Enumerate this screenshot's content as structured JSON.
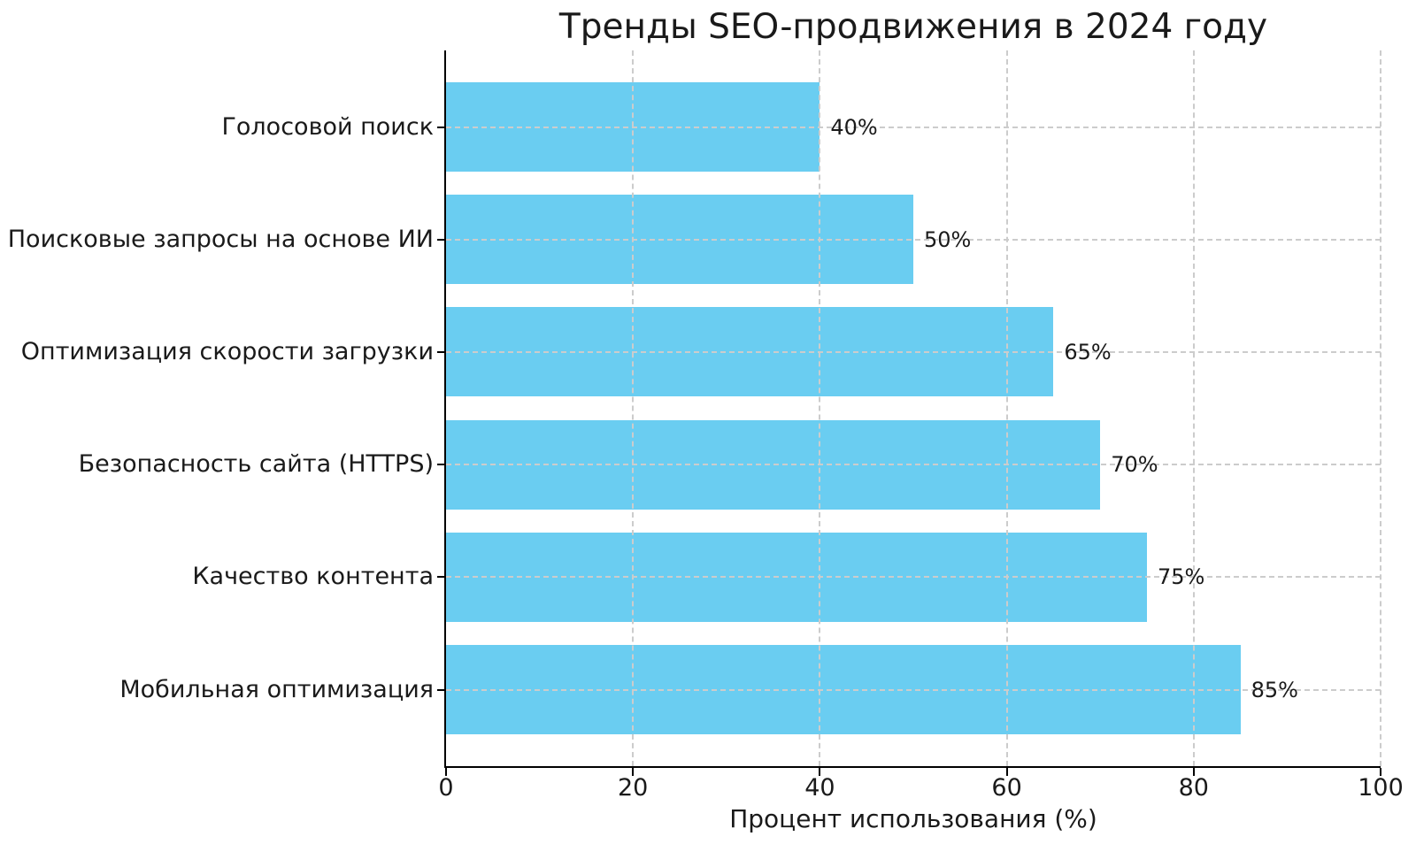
{
  "chart_data": {
    "type": "bar",
    "orientation": "horizontal",
    "title": "Тренды SEO-продвижения в 2024 году",
    "xlabel": "Процент использования (%)",
    "ylabel": "",
    "categories": [
      "Голосовой поиск",
      "Поисковые запросы на основе ИИ",
      "Оптимизация скорости загрузки",
      "Безопасность сайта (HTTPS)",
      "Качество контента",
      "Мобильная оптимизация"
    ],
    "values": [
      40,
      50,
      65,
      70,
      75,
      85
    ],
    "value_labels": [
      "40%",
      "50%",
      "65%",
      "70%",
      "75%",
      "85%"
    ],
    "xlim": [
      0,
      100
    ],
    "x_ticks": [
      0,
      20,
      40,
      60,
      80,
      100
    ],
    "x_tick_labels": [
      "0",
      "20",
      "40",
      "60",
      "80",
      "100"
    ],
    "grid": true,
    "grid_style": "dashed",
    "grid_over_bars": true,
    "legend": false,
    "colors": {
      "bar": "#6acdf1",
      "grid": "#cccccc",
      "axis": "#000000",
      "text": "#1a1a1a",
      "background": "#ffffff"
    }
  }
}
